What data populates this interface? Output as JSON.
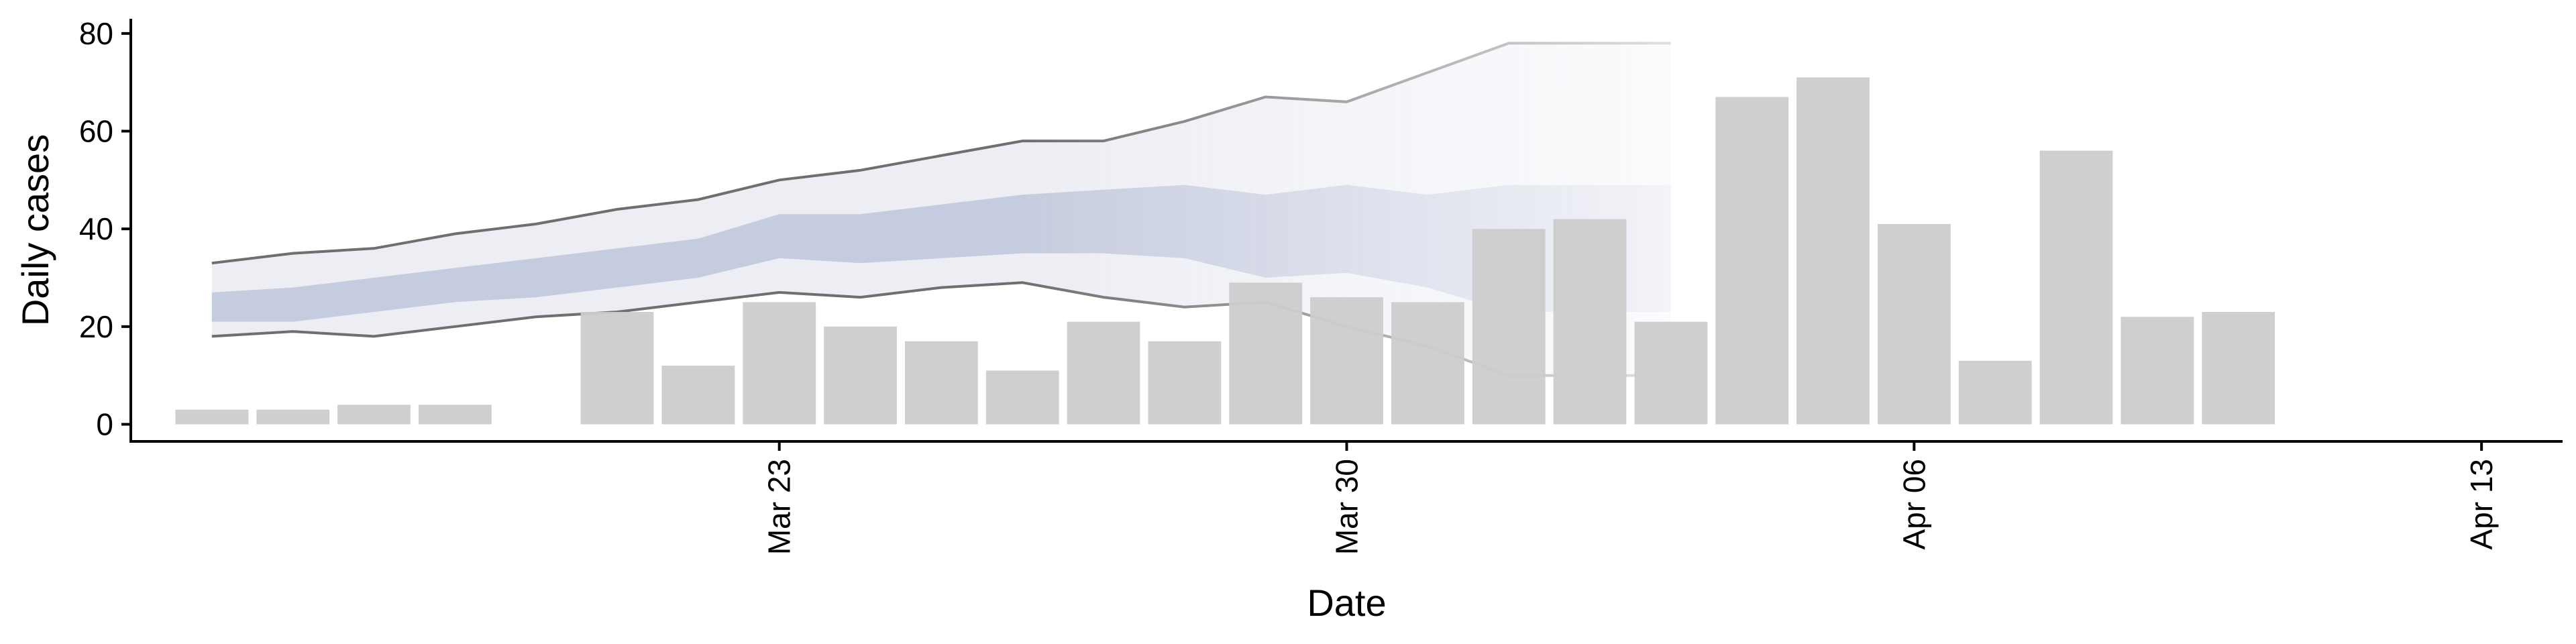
{
  "chart_data": {
    "type": "bar",
    "title": "",
    "xlabel": "Date",
    "ylabel": "Daily cases",
    "ylim": [
      -3.5,
      83
    ],
    "xlim": [
      "2020-03-15",
      "2020-04-14"
    ],
    "yticks": [
      0,
      20,
      40,
      60,
      80
    ],
    "xticks": [
      {
        "date": "2020-03-23",
        "label": "Mar 23"
      },
      {
        "date": "2020-03-30",
        "label": "Mar 30"
      },
      {
        "date": "2020-04-06",
        "label": "Apr 06"
      },
      {
        "date": "2020-04-13",
        "label": "Apr 13"
      }
    ],
    "bars": {
      "color": "#cccccc",
      "dates": [
        "2020-03-16",
        "2020-03-17",
        "2020-03-18",
        "2020-03-19",
        "2020-03-21",
        "2020-03-22",
        "2020-03-23",
        "2020-03-24",
        "2020-03-25",
        "2020-03-26",
        "2020-03-27",
        "2020-03-28",
        "2020-03-29",
        "2020-03-30",
        "2020-03-31",
        "2020-04-01",
        "2020-04-02",
        "2020-04-03",
        "2020-04-04",
        "2020-04-05",
        "2020-04-06",
        "2020-04-07",
        "2020-04-08",
        "2020-04-09",
        "2020-04-10",
        "2020-04-11",
        "2020-04-12",
        "2020-04-13"
      ],
      "values": [
        3,
        3,
        4,
        4,
        23,
        12,
        25,
        20,
        17,
        11,
        21,
        17,
        29,
        26,
        25,
        40,
        42,
        21,
        67,
        71,
        41,
        13,
        56,
        22,
        23,
        0,
        0,
        0
      ]
    },
    "forecast": {
      "dates": [
        "2020-03-16",
        "2020-03-17",
        "2020-03-18",
        "2020-03-19",
        "2020-03-20",
        "2020-03-21",
        "2020-03-22",
        "2020-03-23",
        "2020-03-24",
        "2020-03-25",
        "2020-03-26",
        "2020-03-27",
        "2020-03-28",
        "2020-03-29",
        "2020-03-30",
        "2020-03-31",
        "2020-04-01",
        "2020-04-02",
        "2020-04-03"
      ],
      "upper90": [
        33,
        35,
        36,
        39,
        41,
        44,
        46,
        50,
        52,
        55,
        58,
        58,
        62,
        67,
        66,
        72,
        78,
        78,
        78
      ],
      "lower90": [
        18,
        19,
        18,
        20,
        22,
        23,
        25,
        27,
        26,
        28,
        29,
        26,
        24,
        25,
        20,
        16,
        10,
        10,
        10
      ],
      "upper50": [
        27,
        28,
        30,
        32,
        34,
        36,
        38,
        43,
        43,
        45,
        47,
        48,
        49,
        47,
        49,
        47,
        49,
        49,
        49
      ],
      "lower50": [
        21,
        21,
        23,
        25,
        26,
        28,
        30,
        34,
        33,
        34,
        35,
        35,
        34,
        30,
        31,
        28,
        23,
        23,
        23
      ],
      "outer_color": "#e6e8f0",
      "inner_color": "#b9c0d8",
      "line_color": "#6f6f6f"
    }
  }
}
